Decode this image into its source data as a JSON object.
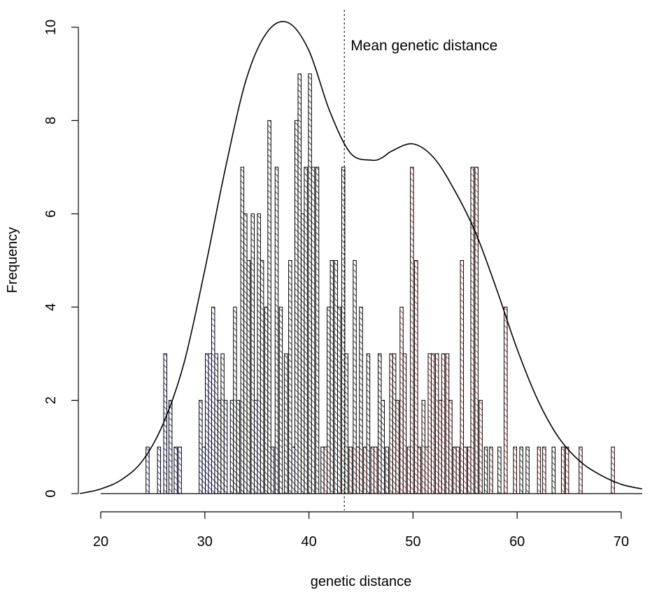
{
  "chart_data": {
    "type": "bar",
    "title": "",
    "xlabel": "genetic distance",
    "ylabel": "Frequency",
    "xlim": [
      18,
      72
    ],
    "ylim": [
      0,
      10
    ],
    "x_ticks": [
      20,
      30,
      40,
      50,
      60,
      70
    ],
    "y_ticks": [
      0,
      2,
      4,
      6,
      8,
      10
    ],
    "bin_width": 0.3,
    "annotation": {
      "text": "Mean genetic distance",
      "x": 43.4
    },
    "colors": {
      "blue": "#1a1aa6",
      "black": "#222222",
      "red": "#c01a1a"
    },
    "groups": [
      "black",
      "blue",
      "red"
    ],
    "bins": [
      {
        "x": 24.5,
        "count": 1,
        "group": "blue"
      },
      {
        "x": 25.6,
        "count": 1,
        "group": "blue"
      },
      {
        "x": 26.2,
        "count": 3,
        "group": "blue"
      },
      {
        "x": 26.7,
        "count": 2,
        "group": "blue"
      },
      {
        "x": 27.2,
        "count": 1,
        "group": "blue"
      },
      {
        "x": 27.6,
        "count": 1,
        "group": "blue"
      },
      {
        "x": 29.6,
        "count": 2,
        "group": "blue"
      },
      {
        "x": 29.9,
        "count": 1,
        "group": "blue"
      },
      {
        "x": 30.2,
        "count": 3,
        "group": "blue"
      },
      {
        "x": 30.5,
        "count": 3,
        "group": "blue"
      },
      {
        "x": 30.8,
        "count": 4,
        "group": "blue"
      },
      {
        "x": 31.1,
        "count": 3,
        "group": "black"
      },
      {
        "x": 31.4,
        "count": 2,
        "group": "black"
      },
      {
        "x": 31.7,
        "count": 3,
        "group": "black"
      },
      {
        "x": 32.0,
        "count": 2,
        "group": "blue"
      },
      {
        "x": 32.6,
        "count": 2,
        "group": "black"
      },
      {
        "x": 32.9,
        "count": 4,
        "group": "black"
      },
      {
        "x": 33.2,
        "count": 2,
        "group": "black"
      },
      {
        "x": 33.6,
        "count": 7,
        "group": "black"
      },
      {
        "x": 33.9,
        "count": 6,
        "group": "black"
      },
      {
        "x": 34.2,
        "count": 5,
        "group": "black"
      },
      {
        "x": 34.6,
        "count": 6,
        "group": "black"
      },
      {
        "x": 34.9,
        "count": 2,
        "group": "blue"
      },
      {
        "x": 35.2,
        "count": 6,
        "group": "black"
      },
      {
        "x": 35.5,
        "count": 5,
        "group": "black"
      },
      {
        "x": 35.9,
        "count": 4,
        "group": "black"
      },
      {
        "x": 36.2,
        "count": 8,
        "group": "black"
      },
      {
        "x": 36.5,
        "count": 1,
        "group": "blue"
      },
      {
        "x": 36.9,
        "count": 7,
        "group": "black"
      },
      {
        "x": 37.3,
        "count": 4,
        "group": "black"
      },
      {
        "x": 37.8,
        "count": 3,
        "group": "black"
      },
      {
        "x": 38.2,
        "count": 5,
        "group": "black"
      },
      {
        "x": 38.5,
        "count": 1,
        "group": "blue"
      },
      {
        "x": 38.8,
        "count": 8,
        "group": "black"
      },
      {
        "x": 39.1,
        "count": 9,
        "group": "black"
      },
      {
        "x": 39.4,
        "count": 6,
        "group": "black"
      },
      {
        "x": 39.7,
        "count": 7,
        "group": "black"
      },
      {
        "x": 40.1,
        "count": 9,
        "group": "black"
      },
      {
        "x": 40.4,
        "count": 7,
        "group": "black"
      },
      {
        "x": 40.8,
        "count": 7,
        "group": "black"
      },
      {
        "x": 41.3,
        "count": 1,
        "group": "black"
      },
      {
        "x": 41.6,
        "count": 1,
        "group": "red"
      },
      {
        "x": 41.9,
        "count": 4,
        "group": "black"
      },
      {
        "x": 42.2,
        "count": 5,
        "group": "black"
      },
      {
        "x": 42.6,
        "count": 5,
        "group": "black"
      },
      {
        "x": 42.9,
        "count": 4,
        "group": "black"
      },
      {
        "x": 43.3,
        "count": 7,
        "group": "black"
      },
      {
        "x": 43.6,
        "count": 3,
        "group": "black"
      },
      {
        "x": 44.0,
        "count": 1,
        "group": "red"
      },
      {
        "x": 44.4,
        "count": 5,
        "group": "black"
      },
      {
        "x": 44.7,
        "count": 1,
        "group": "red"
      },
      {
        "x": 45.0,
        "count": 4,
        "group": "black"
      },
      {
        "x": 45.4,
        "count": 1,
        "group": "red"
      },
      {
        "x": 45.7,
        "count": 3,
        "group": "black"
      },
      {
        "x": 46.1,
        "count": 1,
        "group": "red"
      },
      {
        "x": 46.4,
        "count": 1,
        "group": "red"
      },
      {
        "x": 46.8,
        "count": 3,
        "group": "black"
      },
      {
        "x": 47.1,
        "count": 2,
        "group": "black"
      },
      {
        "x": 47.5,
        "count": 1,
        "group": "black"
      },
      {
        "x": 47.9,
        "count": 3,
        "group": "red"
      },
      {
        "x": 48.2,
        "count": 3,
        "group": "black"
      },
      {
        "x": 48.5,
        "count": 2,
        "group": "red"
      },
      {
        "x": 48.9,
        "count": 4,
        "group": "red"
      },
      {
        "x": 49.2,
        "count": 3,
        "group": "red"
      },
      {
        "x": 49.6,
        "count": 1,
        "group": "red"
      },
      {
        "x": 49.9,
        "count": 7,
        "group": "red"
      },
      {
        "x": 50.3,
        "count": 5,
        "group": "red"
      },
      {
        "x": 50.6,
        "count": 1,
        "group": "red"
      },
      {
        "x": 51.0,
        "count": 2,
        "group": "red"
      },
      {
        "x": 51.3,
        "count": 1,
        "group": "red"
      },
      {
        "x": 51.6,
        "count": 3,
        "group": "red"
      },
      {
        "x": 51.9,
        "count": 3,
        "group": "red"
      },
      {
        "x": 52.3,
        "count": 3,
        "group": "red"
      },
      {
        "x": 52.6,
        "count": 2,
        "group": "red"
      },
      {
        "x": 52.9,
        "count": 3,
        "group": "red"
      },
      {
        "x": 53.3,
        "count": 3,
        "group": "red"
      },
      {
        "x": 53.6,
        "count": 2,
        "group": "red"
      },
      {
        "x": 54.0,
        "count": 1,
        "group": "red"
      },
      {
        "x": 54.3,
        "count": 1,
        "group": "red"
      },
      {
        "x": 54.7,
        "count": 5,
        "group": "red"
      },
      {
        "x": 55.0,
        "count": 1,
        "group": "red"
      },
      {
        "x": 55.4,
        "count": 1,
        "group": "red"
      },
      {
        "x": 55.7,
        "count": 7,
        "group": "red"
      },
      {
        "x": 56.1,
        "count": 7,
        "group": "red"
      },
      {
        "x": 56.5,
        "count": 2,
        "group": "red"
      },
      {
        "x": 57.0,
        "count": 1,
        "group": "black"
      },
      {
        "x": 57.5,
        "count": 1,
        "group": "red"
      },
      {
        "x": 58.3,
        "count": 1,
        "group": "black"
      },
      {
        "x": 58.9,
        "count": 4,
        "group": "red"
      },
      {
        "x": 59.8,
        "count": 1,
        "group": "red"
      },
      {
        "x": 60.4,
        "count": 1,
        "group": "black"
      },
      {
        "x": 61.0,
        "count": 1,
        "group": "black"
      },
      {
        "x": 62.1,
        "count": 1,
        "group": "red"
      },
      {
        "x": 62.6,
        "count": 1,
        "group": "red"
      },
      {
        "x": 63.5,
        "count": 1,
        "group": "black"
      },
      {
        "x": 64.4,
        "count": 1,
        "group": "red"
      },
      {
        "x": 64.8,
        "count": 1,
        "group": "red"
      },
      {
        "x": 66.1,
        "count": 1,
        "group": "red"
      },
      {
        "x": 69.2,
        "count": 1,
        "group": "red"
      }
    ],
    "density_curve": {
      "x": [
        18,
        20,
        22,
        24,
        26,
        28,
        30,
        32,
        34,
        36,
        38,
        40,
        42,
        44,
        46,
        47,
        48,
        50,
        52,
        54,
        56,
        58,
        60,
        62,
        64,
        66,
        68,
        70,
        72
      ],
      "y": [
        0.0,
        0.1,
        0.3,
        0.7,
        1.5,
        2.8,
        4.8,
        7.0,
        8.9,
        9.9,
        10.1,
        9.5,
        8.2,
        7.3,
        7.15,
        7.2,
        7.35,
        7.5,
        7.2,
        6.5,
        5.6,
        4.4,
        3.1,
        2.0,
        1.2,
        0.7,
        0.4,
        0.2,
        0.1
      ]
    }
  }
}
